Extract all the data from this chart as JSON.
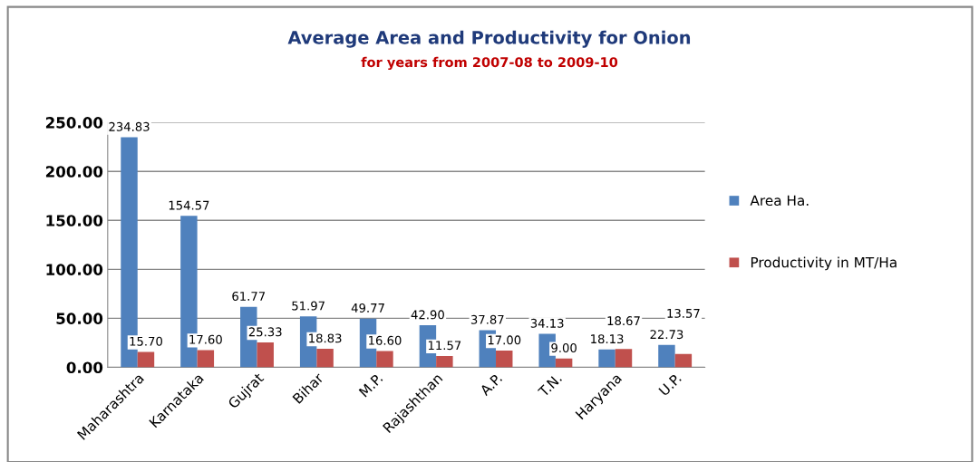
{
  "chart_data": {
    "type": "bar",
    "title": "Average Area and Productivity for Onion",
    "subtitle": "for years from 2007-08 to 2009-10",
    "categories": [
      "Maharashtra",
      "Karnataka",
      "Gujrat",
      "Bihar",
      "M.P.",
      "Rajashthan",
      "A.P.",
      "T.N.",
      "Haryana",
      "U.P."
    ],
    "series": [
      {
        "name": "Area Ha.",
        "color": "#4f81bd",
        "values": [
          234.83,
          154.57,
          61.77,
          51.97,
          49.77,
          42.9,
          37.87,
          34.13,
          18.13,
          22.73
        ],
        "value_labels": [
          "234.83",
          "154.57",
          "61.77",
          "51.97",
          "49.77",
          "42.90",
          "37.87",
          "34.13",
          "18.13",
          "22.73"
        ]
      },
      {
        "name": "Productivity in MT/Ha",
        "color": "#c0504d",
        "values": [
          15.7,
          17.6,
          25.33,
          18.83,
          16.6,
          11.57,
          17.0,
          9.0,
          18.67,
          13.57
        ],
        "value_labels": [
          "15.70",
          "17.60",
          "25.33",
          "18.83",
          "16.60",
          "11.57",
          "17.00",
          "9.00",
          "18.67",
          "13.57"
        ]
      }
    ],
    "ylim": [
      0,
      250
    ],
    "yticks": [
      {
        "value": 0,
        "label": "0.00"
      },
      {
        "value": 50,
        "label": "50.00"
      },
      {
        "value": 100,
        "label": "100.00"
      },
      {
        "value": 150,
        "label": "150.00"
      },
      {
        "value": 200,
        "label": "200.00"
      },
      {
        "value": 250,
        "label": "250.00"
      }
    ],
    "grid": "y",
    "legend": "right"
  }
}
